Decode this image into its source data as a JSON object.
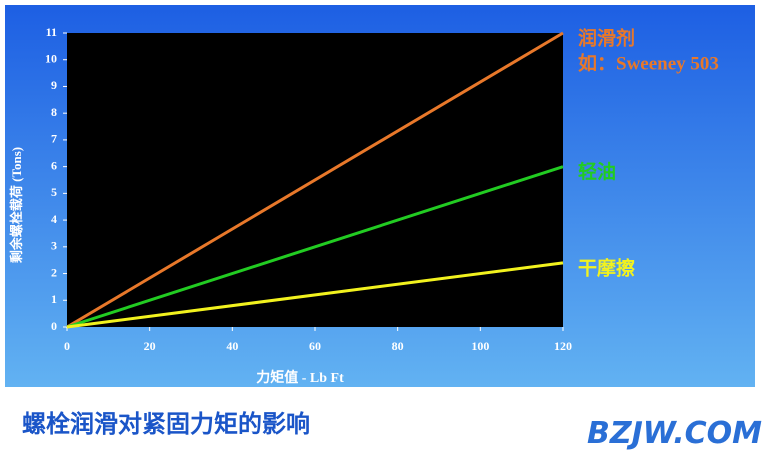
{
  "chart_data": {
    "type": "line",
    "x_label": "力矩值 - Lb Ft",
    "y_label": "剩余螺栓载荷 (Tons)",
    "x": [
      0,
      120
    ],
    "series": [
      {
        "name": "润滑剂",
        "color": "#e8782a",
        "values": [
          0,
          11
        ]
      },
      {
        "name": "轻油",
        "color": "#22cc22",
        "values": [
          0,
          6
        ]
      },
      {
        "name": "干摩擦",
        "color": "#f2f21e",
        "values": [
          0,
          2.4
        ]
      }
    ],
    "annotations": [
      "如：Sweeney 503"
    ],
    "xlim": [
      0,
      120
    ],
    "xticks": [
      0,
      20,
      40,
      60,
      80,
      100,
      120
    ],
    "ylim": [
      0,
      11
    ],
    "yticks": [
      0,
      1,
      2,
      3,
      4,
      5,
      6,
      7,
      8,
      9,
      10,
      11
    ]
  },
  "footer": {
    "caption": "螺栓润滑对紧固力矩的影响",
    "logo": "BZJW.COM"
  }
}
